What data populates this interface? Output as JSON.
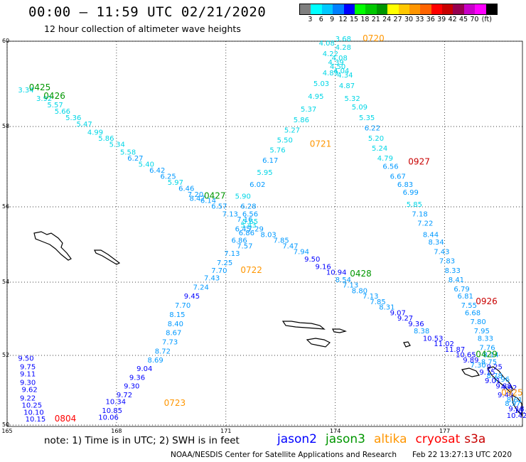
{
  "header": {
    "title": "00:00 – 11:59 UTC 02/21/2020",
    "subtitle": "12 hour collection of altimeter wave heights"
  },
  "colorbar": {
    "colors": [
      "#7f7f7f",
      "#00ffff",
      "#00c8ff",
      "#0080ff",
      "#0000ff",
      "#00ff00",
      "#00c800",
      "#009600",
      "#ffff00",
      "#ffc800",
      "#ff9600",
      "#ff6400",
      "#ff0000",
      "#c80000",
      "#960050",
      "#c800c8",
      "#ff00ff",
      "#000000"
    ],
    "labels": [
      "3",
      "6",
      "9",
      "12",
      "15",
      "18",
      "21",
      "24",
      "27",
      "30",
      "33",
      "36",
      "39",
      "42",
      "45",
      "70",
      "(ft)"
    ]
  },
  "map": {
    "lon_ticks": [
      "165",
      "168",
      "171",
      "174",
      "177"
    ],
    "lat_ticks": [
      "60",
      "58",
      "56",
      "54",
      "52",
      "50"
    ]
  },
  "chart_data": {
    "type": "map",
    "x_axis": {
      "label": "longitude",
      "range": [
        165,
        179
      ]
    },
    "y_axis": {
      "label": "latitude",
      "range": [
        50,
        60
      ]
    },
    "legend": [
      {
        "name": "jason2",
        "color": "#0000ff"
      },
      {
        "name": "jason3",
        "color": "#009600"
      },
      {
        "name": "altika",
        "color": "#ff9600"
      },
      {
        "name": "cryosat",
        "color": "#ff0000"
      },
      {
        "name": "s3a",
        "color": "#c80000"
      }
    ],
    "tracks": [
      {
        "points": [
          {
            "lon": 165.3,
            "lat": 58.8,
            "v": "3.34"
          },
          {
            "lon": 165.8,
            "lat": 58.6,
            "v": "3.92"
          },
          {
            "lon": 166.1,
            "lat": 58.45,
            "v": "5.57"
          },
          {
            "lon": 166.3,
            "lat": 58.3,
            "v": "5.66"
          },
          {
            "lon": 166.6,
            "lat": 58.15,
            "v": "5.36"
          },
          {
            "lon": 166.9,
            "lat": 58.0,
            "v": "5.47"
          },
          {
            "lon": 167.2,
            "lat": 57.8,
            "v": "4.99"
          },
          {
            "lon": 167.5,
            "lat": 57.65,
            "v": "5.86"
          },
          {
            "lon": 167.8,
            "lat": 57.5,
            "v": "5.34"
          },
          {
            "lon": 168.1,
            "lat": 57.3,
            "v": "5.58"
          },
          {
            "lon": 168.3,
            "lat": 57.15,
            "v": "6.27"
          },
          {
            "lon": 168.6,
            "lat": 57.0,
            "v": "5.40"
          },
          {
            "lon": 168.9,
            "lat": 56.85,
            "v": "6.42"
          },
          {
            "lon": 169.2,
            "lat": 56.7,
            "v": "6.25"
          },
          {
            "lon": 169.4,
            "lat": 56.55,
            "v": "5.97"
          },
          {
            "lon": 169.7,
            "lat": 56.4,
            "v": "6.46"
          },
          {
            "lon": 169.95,
            "lat": 56.25,
            "v": "7.20"
          },
          {
            "lon": 170.3,
            "lat": 56.1,
            "v": "6.14"
          },
          {
            "lon": 170.6,
            "lat": 55.95,
            "v": "6.57"
          },
          {
            "lon": 170.9,
            "lat": 55.75,
            "v": "7.13"
          },
          {
            "lon": 171.3,
            "lat": 55.6,
            "v": "7.16"
          },
          {
            "lon": 171.6,
            "lat": 55.35,
            "v": "7.29"
          },
          {
            "lon": 171.95,
            "lat": 55.2,
            "v": "8.03"
          },
          {
            "lon": 172.3,
            "lat": 55.05,
            "v": "7.85"
          },
          {
            "lon": 172.55,
            "lat": 54.9,
            "v": "7.47"
          },
          {
            "lon": 172.85,
            "lat": 54.75,
            "v": "7.94"
          },
          {
            "lon": 173.15,
            "lat": 54.55,
            "v": "9.50"
          },
          {
            "lon": 173.45,
            "lat": 54.35,
            "v": "9.16"
          },
          {
            "lon": 173.75,
            "lat": 54.2,
            "v": "10.94"
          },
          {
            "lon": 174.0,
            "lat": 54.0,
            "v": "8.54"
          },
          {
            "lon": 174.2,
            "lat": 53.85,
            "v": "7.13"
          },
          {
            "lon": 174.45,
            "lat": 53.7,
            "v": "8.80"
          },
          {
            "lon": 174.75,
            "lat": 53.55,
            "v": "7.13"
          },
          {
            "lon": 174.95,
            "lat": 53.4,
            "v": "7.85"
          },
          {
            "lon": 175.2,
            "lat": 53.25,
            "v": "8.31"
          },
          {
            "lon": 175.5,
            "lat": 53.1,
            "v": "9.07"
          },
          {
            "lon": 175.7,
            "lat": 52.95,
            "v": "9.27"
          },
          {
            "lon": 176.0,
            "lat": 52.8,
            "v": "9.36"
          },
          {
            "lon": 176.15,
            "lat": 52.6,
            "v": "8.38"
          },
          {
            "lon": 176.4,
            "lat": 52.4,
            "v": "10.53"
          },
          {
            "lon": 176.7,
            "lat": 52.25,
            "v": "11.02"
          },
          {
            "lon": 177.0,
            "lat": 52.1,
            "v": "11.87"
          },
          {
            "lon": 177.3,
            "lat": 51.95,
            "v": "10.65"
          },
          {
            "lon": 177.5,
            "lat": 51.8,
            "v": "9.89"
          },
          {
            "lon": 177.7,
            "lat": 51.65,
            "v": "7.30"
          }
        ]
      },
      {
        "points": [
          {
            "lon": 170.0,
            "lat": 56.15,
            "v": "8.47"
          },
          {
            "lon": 171.45,
            "lat": 55.55,
            "v": "5.65"
          },
          {
            "lon": 171.4,
            "lat": 55.45,
            "v": "5.43"
          },
          {
            "lon": 171.25,
            "lat": 55.35,
            "v": "6.45"
          },
          {
            "lon": 171.35,
            "lat": 55.25,
            "v": "6.86"
          },
          {
            "lon": 171.15,
            "lat": 55.05,
            "v": "6.86"
          },
          {
            "lon": 171.3,
            "lat": 54.9,
            "v": "7.57"
          },
          {
            "lon": 170.95,
            "lat": 54.7,
            "v": "7.13"
          },
          {
            "lon": 170.75,
            "lat": 54.45,
            "v": "7.25"
          },
          {
            "lon": 170.6,
            "lat": 54.25,
            "v": "7.70"
          },
          {
            "lon": 170.4,
            "lat": 54.05,
            "v": "7.43"
          },
          {
            "lon": 170.1,
            "lat": 53.8,
            "v": "7.24"
          },
          {
            "lon": 169.85,
            "lat": 53.55,
            "v": "9.45"
          },
          {
            "lon": 169.6,
            "lat": 53.3,
            "v": "7.70"
          },
          {
            "lon": 169.45,
            "lat": 53.05,
            "v": "8.15"
          },
          {
            "lon": 169.4,
            "lat": 52.8,
            "v": "8.40"
          },
          {
            "lon": 169.35,
            "lat": 52.55,
            "v": "8.67"
          },
          {
            "lon": 169.25,
            "lat": 52.3,
            "v": "7.73"
          },
          {
            "lon": 169.05,
            "lat": 52.05,
            "v": "8.72"
          },
          {
            "lon": 168.85,
            "lat": 51.8,
            "v": "8.69"
          },
          {
            "lon": 168.55,
            "lat": 51.55,
            "v": "9.04"
          },
          {
            "lon": 168.35,
            "lat": 51.3,
            "v": "9.36"
          },
          {
            "lon": 168.2,
            "lat": 51.05,
            "v": "9.30"
          },
          {
            "lon": 168.0,
            "lat": 50.8,
            "v": "9.72"
          },
          {
            "lon": 167.7,
            "lat": 50.6,
            "v": "10.34"
          },
          {
            "lon": 167.6,
            "lat": 50.35,
            "v": "10.85"
          },
          {
            "lon": 167.5,
            "lat": 50.15,
            "v": "10.06"
          }
        ]
      },
      {
        "points": [
          {
            "lon": 171.25,
            "lat": 56.2,
            "v": "5.90"
          },
          {
            "lon": 171.4,
            "lat": 55.95,
            "v": "6.28"
          },
          {
            "lon": 171.45,
            "lat": 55.75,
            "v": "6.56"
          },
          {
            "lon": 171.65,
            "lat": 56.5,
            "v": "6.02"
          },
          {
            "lon": 171.85,
            "lat": 56.8,
            "v": "5.95"
          },
          {
            "lon": 172.0,
            "lat": 57.1,
            "v": "6.17"
          },
          {
            "lon": 172.2,
            "lat": 57.35,
            "v": "5.76"
          },
          {
            "lon": 172.4,
            "lat": 57.6,
            "v": "5.50"
          },
          {
            "lon": 172.6,
            "lat": 57.85,
            "v": "5.27"
          },
          {
            "lon": 172.85,
            "lat": 58.1,
            "v": "5.86"
          },
          {
            "lon": 173.05,
            "lat": 58.35,
            "v": "5.37"
          },
          {
            "lon": 173.25,
            "lat": 58.65,
            "v": "4.95"
          },
          {
            "lon": 173.4,
            "lat": 58.95,
            "v": "5.03"
          },
          {
            "lon": 173.65,
            "lat": 59.2,
            "v": "4.89"
          },
          {
            "lon": 173.8,
            "lat": 59.45,
            "v": "4.39"
          },
          {
            "lon": 173.65,
            "lat": 59.65,
            "v": "4.22"
          },
          {
            "lon": 173.55,
            "lat": 59.9,
            "v": "4.08"
          }
        ]
      },
      {
        "points": [
          {
            "lon": 174.0,
            "lat": 60.0,
            "v": "3.68"
          },
          {
            "lon": 174.0,
            "lat": 59.8,
            "v": "4.28"
          },
          {
            "lon": 173.9,
            "lat": 59.55,
            "v": "4.08"
          },
          {
            "lon": 173.85,
            "lat": 59.35,
            "v": "4.50"
          },
          {
            "lon": 173.95,
            "lat": 59.25,
            "v": "4.04"
          },
          {
            "lon": 174.05,
            "lat": 59.15,
            "v": "4.34"
          },
          {
            "lon": 174.1,
            "lat": 58.9,
            "v": "4.87"
          },
          {
            "lon": 174.25,
            "lat": 58.6,
            "v": "5.32"
          },
          {
            "lon": 174.45,
            "lat": 58.4,
            "v": "5.09"
          },
          {
            "lon": 174.65,
            "lat": 58.15,
            "v": "5.35"
          },
          {
            "lon": 174.8,
            "lat": 57.9,
            "v": "6.22"
          },
          {
            "lon": 174.9,
            "lat": 57.65,
            "v": "5.20"
          },
          {
            "lon": 175.0,
            "lat": 57.4,
            "v": "5.24"
          },
          {
            "lon": 175.15,
            "lat": 57.15,
            "v": "4.79"
          },
          {
            "lon": 175.3,
            "lat": 56.95,
            "v": "6.56"
          },
          {
            "lon": 175.5,
            "lat": 56.7,
            "v": "6.67"
          },
          {
            "lon": 175.7,
            "lat": 56.5,
            "v": "6.83"
          },
          {
            "lon": 175.85,
            "lat": 56.3,
            "v": "6.99"
          },
          {
            "lon": 175.95,
            "lat": 56.0,
            "v": "5.85"
          },
          {
            "lon": 176.1,
            "lat": 55.75,
            "v": "7.18"
          },
          {
            "lon": 176.25,
            "lat": 55.5,
            "v": "7.22"
          },
          {
            "lon": 176.4,
            "lat": 55.2,
            "v": "8.44"
          },
          {
            "lon": 176.55,
            "lat": 55.0,
            "v": "8.34"
          },
          {
            "lon": 176.7,
            "lat": 54.75,
            "v": "7.43"
          },
          {
            "lon": 176.85,
            "lat": 54.5,
            "v": "7.83"
          },
          {
            "lon": 177.0,
            "lat": 54.25,
            "v": "8.33"
          },
          {
            "lon": 177.1,
            "lat": 54.0,
            "v": "8.41"
          },
          {
            "lon": 177.25,
            "lat": 53.75,
            "v": "6.79"
          },
          {
            "lon": 177.35,
            "lat": 53.55,
            "v": "6.81"
          },
          {
            "lon": 177.45,
            "lat": 53.3,
            "v": "7.55"
          },
          {
            "lon": 177.55,
            "lat": 53.1,
            "v": "6.68"
          },
          {
            "lon": 177.7,
            "lat": 52.85,
            "v": "7.80"
          },
          {
            "lon": 177.8,
            "lat": 52.6,
            "v": "7.95"
          },
          {
            "lon": 177.9,
            "lat": 52.4,
            "v": "8.33"
          },
          {
            "lon": 177.95,
            "lat": 52.15,
            "v": "7.76"
          },
          {
            "lon": 178.05,
            "lat": 51.95,
            "v": "8.14"
          },
          {
            "lon": 178.0,
            "lat": 51.75,
            "v": "8.75"
          },
          {
            "lon": 178.15,
            "lat": 51.6,
            "v": "9.25"
          },
          {
            "lon": 177.95,
            "lat": 51.45,
            "v": "9.15"
          },
          {
            "lon": 178.15,
            "lat": 51.35,
            "v": "8.78"
          },
          {
            "lon": 178.35,
            "lat": 51.25,
            "v": "7.96"
          },
          {
            "lon": 178.1,
            "lat": 51.2,
            "v": "9.01"
          },
          {
            "lon": 178.4,
            "lat": 51.05,
            "v": "9.88"
          },
          {
            "lon": 178.55,
            "lat": 51.0,
            "v": "9.62"
          },
          {
            "lon": 178.45,
            "lat": 50.8,
            "v": "9.40"
          },
          {
            "lon": 178.7,
            "lat": 50.65,
            "v": "8.61"
          },
          {
            "lon": 178.65,
            "lat": 50.55,
            "v": "8.97"
          },
          {
            "lon": 178.75,
            "lat": 50.4,
            "v": "9.18"
          },
          {
            "lon": 178.9,
            "lat": 50.35,
            "v": "10.62"
          },
          {
            "lon": 178.7,
            "lat": 50.2,
            "v": "10.42"
          }
        ]
      },
      {
        "points": [
          {
            "lon": 165.3,
            "lat": 51.85,
            "v": "9.50"
          },
          {
            "lon": 165.35,
            "lat": 51.6,
            "v": "9.75"
          },
          {
            "lon": 165.35,
            "lat": 51.4,
            "v": "9.11"
          },
          {
            "lon": 165.35,
            "lat": 51.15,
            "v": "9.30"
          },
          {
            "lon": 165.4,
            "lat": 50.95,
            "v": "9.62"
          },
          {
            "lon": 165.35,
            "lat": 50.7,
            "v": "9.22"
          },
          {
            "lon": 165.4,
            "lat": 50.5,
            "v": "10.25"
          },
          {
            "lon": 165.45,
            "lat": 50.3,
            "v": "10.10"
          },
          {
            "lon": 165.5,
            "lat": 50.1,
            "v": "10.15"
          }
        ]
      }
    ],
    "time_labels": [
      {
        "lon": 174.75,
        "lat": 60.0,
        "text": "0720",
        "color": "#ff9600"
      },
      {
        "lon": 165.6,
        "lat": 58.85,
        "text": "0425",
        "color": "#009600"
      },
      {
        "lon": 166.0,
        "lat": 58.65,
        "text": "0426",
        "color": "#009600"
      },
      {
        "lon": 173.3,
        "lat": 57.5,
        "text": "0721",
        "color": "#ff9600"
      },
      {
        "lon": 176.0,
        "lat": 57.05,
        "text": "0927",
        "color": "#c80000"
      },
      {
        "lon": 170.4,
        "lat": 56.2,
        "text": "0427",
        "color": "#009600"
      },
      {
        "lon": 171.4,
        "lat": 54.25,
        "text": "0722",
        "color": "#ff9600"
      },
      {
        "lon": 174.4,
        "lat": 54.15,
        "text": "0428",
        "color": "#009600"
      },
      {
        "lon": 177.85,
        "lat": 53.4,
        "text": "0926",
        "color": "#c80000"
      },
      {
        "lon": 177.85,
        "lat": 51.95,
        "text": "0429",
        "color": "#009600"
      },
      {
        "lon": 169.3,
        "lat": 50.55,
        "text": "0723",
        "color": "#ff9600"
      },
      {
        "lon": 166.3,
        "lat": 50.1,
        "text": "0804",
        "color": "#ff0000"
      },
      {
        "lon": 178.55,
        "lat": 50.85,
        "text": "0925",
        "color": "#ff9600"
      }
    ]
  },
  "footer": {
    "note": "note: 1) Time is in UTC; 2) SWH is in feet",
    "legend": {
      "jason2": "jason2",
      "jason3": "jason3",
      "altika": "altika",
      "cryosat": "cryosat",
      "s3a": "s3a"
    },
    "credit": "NOAA/NESDIS Center for Satellite Applications and Research",
    "timestamp": "Feb 22 13:27:13 UTC 2020"
  }
}
